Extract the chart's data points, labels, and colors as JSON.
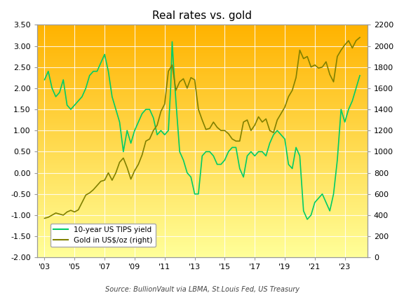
{
  "title": "Real rates vs. gold",
  "source": "Source: BullionVault via LBMA, St.Louis Fed, US Treasury",
  "ylim_left": [
    -2.0,
    3.5
  ],
  "ylim_right": [
    0,
    2200
  ],
  "yticks_left": [
    -2.0,
    -1.5,
    -1.0,
    -0.5,
    0.0,
    0.5,
    1.0,
    1.5,
    2.0,
    2.5,
    3.0,
    3.5
  ],
  "yticks_right": [
    0,
    200,
    400,
    600,
    800,
    1000,
    1200,
    1400,
    1600,
    1800,
    2000,
    2200
  ],
  "xticks": [
    2003,
    2005,
    2007,
    2009,
    2011,
    2013,
    2015,
    2017,
    2019,
    2021,
    2023
  ],
  "xticklabels": [
    "'03",
    "'05",
    "'07",
    "'09",
    "'11",
    "'13",
    "'15",
    "'17",
    "'19",
    "'21",
    "'23"
  ],
  "xlim": [
    2002.5,
    2024.5
  ],
  "tips_color": "#00cc66",
  "gold_color": "#808000",
  "legend_tips": "10-year US TIPS yield",
  "legend_gold": "Gold in US$/oz (right)",
  "tips_years": [
    2003.0,
    2003.25,
    2003.5,
    2003.75,
    2004.0,
    2004.25,
    2004.5,
    2004.75,
    2005.0,
    2005.25,
    2005.5,
    2005.75,
    2006.0,
    2006.25,
    2006.5,
    2006.75,
    2007.0,
    2007.25,
    2007.5,
    2007.75,
    2008.0,
    2008.25,
    2008.5,
    2008.75,
    2009.0,
    2009.25,
    2009.5,
    2009.75,
    2010.0,
    2010.25,
    2010.5,
    2010.75,
    2011.0,
    2011.25,
    2011.4,
    2011.5,
    2011.6,
    2011.75,
    2012.0,
    2012.25,
    2012.5,
    2012.75,
    2013.0,
    2013.25,
    2013.5,
    2013.75,
    2014.0,
    2014.25,
    2014.5,
    2014.75,
    2015.0,
    2015.25,
    2015.5,
    2015.75,
    2016.0,
    2016.25,
    2016.5,
    2016.75,
    2017.0,
    2017.25,
    2017.5,
    2017.75,
    2018.0,
    2018.25,
    2018.5,
    2018.75,
    2019.0,
    2019.25,
    2019.5,
    2019.75,
    2020.0,
    2020.25,
    2020.5,
    2020.75,
    2021.0,
    2021.25,
    2021.5,
    2021.75,
    2022.0,
    2022.25,
    2022.5,
    2022.75,
    2023.0,
    2023.25,
    2023.5,
    2023.75,
    2024.0
  ],
  "tips_values": [
    2.2,
    2.4,
    2.0,
    1.8,
    1.9,
    2.2,
    1.6,
    1.5,
    1.6,
    1.7,
    1.8,
    2.0,
    2.3,
    2.4,
    2.4,
    2.6,
    2.8,
    2.4,
    1.8,
    1.5,
    1.2,
    0.5,
    1.0,
    0.7,
    1.0,
    1.2,
    1.4,
    1.5,
    1.5,
    1.3,
    0.9,
    1.0,
    0.9,
    1.0,
    2.0,
    3.1,
    2.5,
    1.7,
    0.5,
    0.3,
    0.0,
    -0.1,
    -0.5,
    -0.5,
    0.4,
    0.5,
    0.5,
    0.4,
    0.2,
    0.2,
    0.3,
    0.5,
    0.6,
    0.6,
    0.1,
    -0.1,
    0.4,
    0.5,
    0.4,
    0.5,
    0.5,
    0.4,
    0.7,
    0.9,
    1.0,
    0.9,
    0.8,
    0.2,
    0.1,
    0.6,
    0.4,
    -0.9,
    -1.1,
    -1.0,
    -0.7,
    -0.6,
    -0.5,
    -0.7,
    -0.9,
    -0.5,
    0.3,
    1.5,
    1.2,
    1.5,
    1.7,
    2.0,
    2.3
  ],
  "gold_years": [
    2003.0,
    2003.25,
    2003.5,
    2003.75,
    2004.0,
    2004.25,
    2004.5,
    2004.75,
    2005.0,
    2005.25,
    2005.5,
    2005.75,
    2006.0,
    2006.25,
    2006.5,
    2006.75,
    2007.0,
    2007.25,
    2007.5,
    2007.75,
    2008.0,
    2008.25,
    2008.5,
    2008.75,
    2009.0,
    2009.25,
    2009.5,
    2009.75,
    2010.0,
    2010.25,
    2010.5,
    2010.75,
    2011.0,
    2011.25,
    2011.5,
    2011.75,
    2012.0,
    2012.25,
    2012.5,
    2012.75,
    2013.0,
    2013.25,
    2013.5,
    2013.75,
    2014.0,
    2014.25,
    2014.5,
    2014.75,
    2015.0,
    2015.25,
    2015.5,
    2015.75,
    2016.0,
    2016.25,
    2016.5,
    2016.75,
    2017.0,
    2017.25,
    2017.5,
    2017.75,
    2018.0,
    2018.25,
    2018.5,
    2018.75,
    2019.0,
    2019.25,
    2019.5,
    2019.75,
    2020.0,
    2020.25,
    2020.5,
    2020.75,
    2021.0,
    2021.25,
    2021.5,
    2021.75,
    2022.0,
    2022.25,
    2022.5,
    2022.75,
    2023.0,
    2023.25,
    2023.5,
    2023.75,
    2024.0
  ],
  "gold_values": [
    370,
    380,
    400,
    420,
    410,
    400,
    430,
    445,
    430,
    450,
    520,
    590,
    610,
    640,
    680,
    720,
    730,
    800,
    730,
    800,
    900,
    940,
    850,
    740,
    820,
    880,
    970,
    1100,
    1120,
    1200,
    1250,
    1380,
    1450,
    1760,
    1820,
    1580,
    1660,
    1690,
    1600,
    1700,
    1680,
    1400,
    1300,
    1210,
    1220,
    1280,
    1230,
    1200,
    1200,
    1170,
    1120,
    1100,
    1100,
    1280,
    1300,
    1200,
    1250,
    1330,
    1280,
    1310,
    1200,
    1180,
    1300,
    1360,
    1420,
    1520,
    1580,
    1700,
    1960,
    1880,
    1900,
    1800,
    1820,
    1790,
    1800,
    1850,
    1730,
    1660,
    1900,
    1960,
    2010,
    2050,
    1980,
    2050,
    2080
  ]
}
